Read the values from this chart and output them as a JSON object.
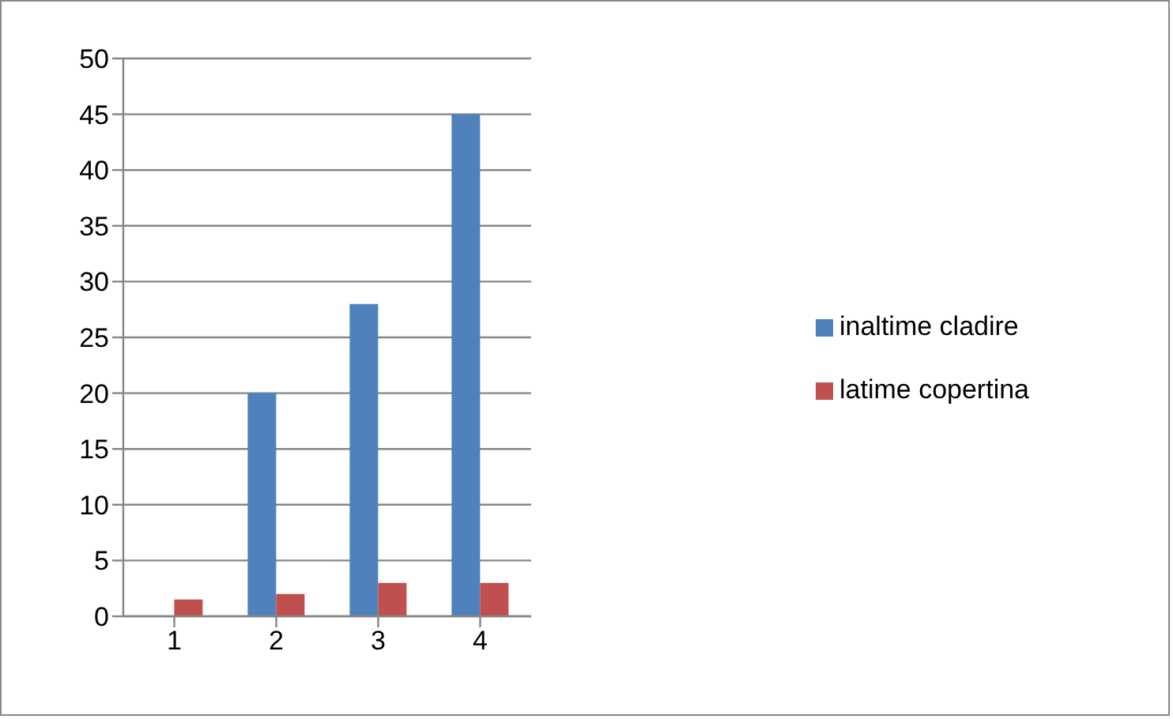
{
  "chart_data": {
    "type": "bar",
    "categories": [
      "1",
      "2",
      "3",
      "4"
    ],
    "series": [
      {
        "name": "inaltime cladire",
        "color": "#4f81bd",
        "values": [
          0,
          20,
          28,
          45
        ]
      },
      {
        "name": "latime copertina",
        "color": "#c0504d",
        "values": [
          1.5,
          2,
          3,
          3
        ]
      }
    ],
    "ylim": [
      0,
      50
    ],
    "yticks": [
      0,
      5,
      10,
      15,
      20,
      25,
      30,
      35,
      40,
      45,
      50
    ],
    "grid": "y",
    "legend": "right"
  }
}
